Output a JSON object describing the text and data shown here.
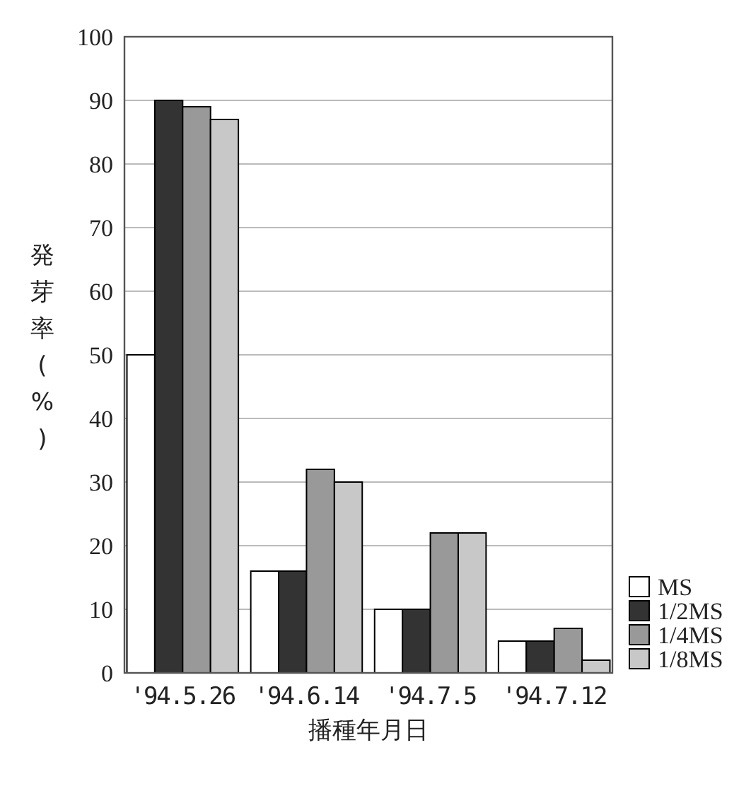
{
  "chart_data": {
    "type": "bar",
    "xlabel": "播種年月日",
    "ylabel": "発芽率(%)",
    "categories": [
      "'94.5.26",
      "'94.6.14",
      "'94.7.5",
      "'94.7.12"
    ],
    "series": [
      {
        "name": "MS",
        "color": "#ffffff",
        "values": [
          50,
          16,
          10,
          5
        ]
      },
      {
        "name": "1/2MS",
        "color": "#333333",
        "values": [
          90,
          16,
          10,
          5
        ]
      },
      {
        "name": "1/4MS",
        "color": "#999999",
        "values": [
          89,
          32,
          22,
          7
        ]
      },
      {
        "name": "1/8MS",
        "color": "#c8c8c8",
        "values": [
          87,
          30,
          22,
          2
        ]
      }
    ],
    "ylim": [
      0,
      100
    ],
    "yticks": [
      0,
      10,
      20,
      30,
      40,
      50,
      60,
      70,
      80,
      90,
      100
    ],
    "grid": "y",
    "legend": "bottom right"
  }
}
